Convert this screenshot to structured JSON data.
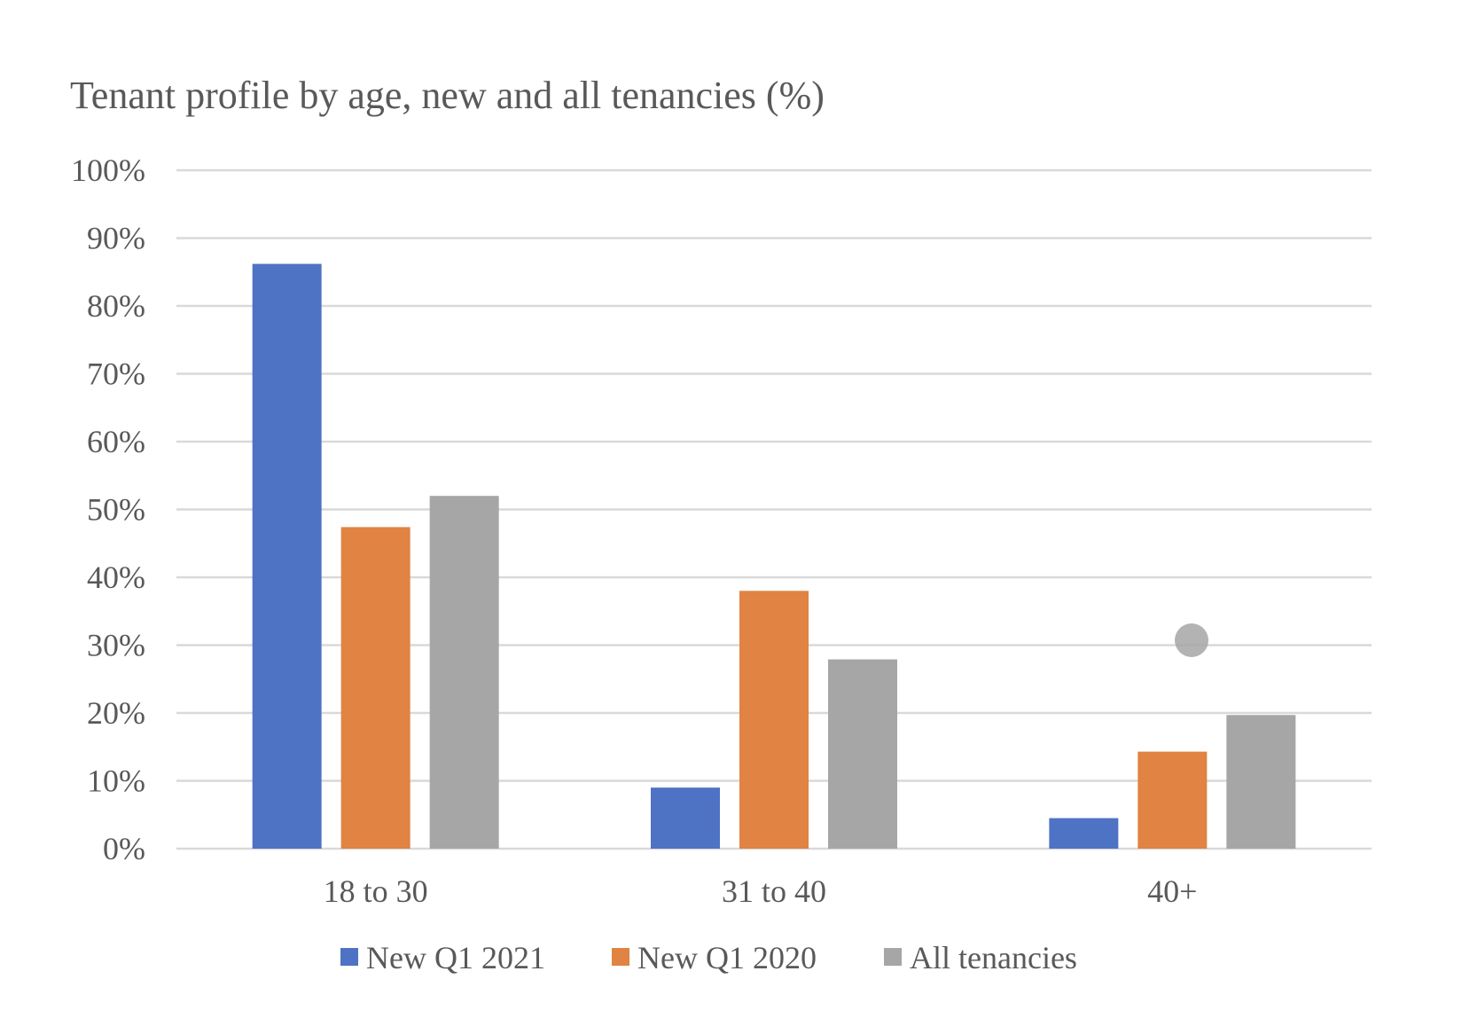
{
  "chart_data": {
    "type": "bar",
    "title": "Tenant profile by age, new and all tenancies (%)",
    "xlabel": "",
    "ylabel": "",
    "categories": [
      "18 to 30",
      "31 to 40",
      "40+"
    ],
    "series": [
      {
        "name": "New Q1 2021",
        "color": "#4e73c4",
        "values": [
          86.2,
          9.0,
          4.5
        ]
      },
      {
        "name": "New Q1 2020",
        "color": "#e08343",
        "values": [
          47.4,
          38.0,
          14.3
        ]
      },
      {
        "name": "All tenancies",
        "color": "#a6a6a6",
        "values": [
          52.0,
          27.9,
          19.7
        ]
      }
    ],
    "ylim": [
      0,
      100
    ],
    "yticks": [
      "0%",
      "10%",
      "20%",
      "30%",
      "40%",
      "50%",
      "60%",
      "70%",
      "80%",
      "90%",
      "100%"
    ],
    "grid": true,
    "legend": "bottom"
  }
}
